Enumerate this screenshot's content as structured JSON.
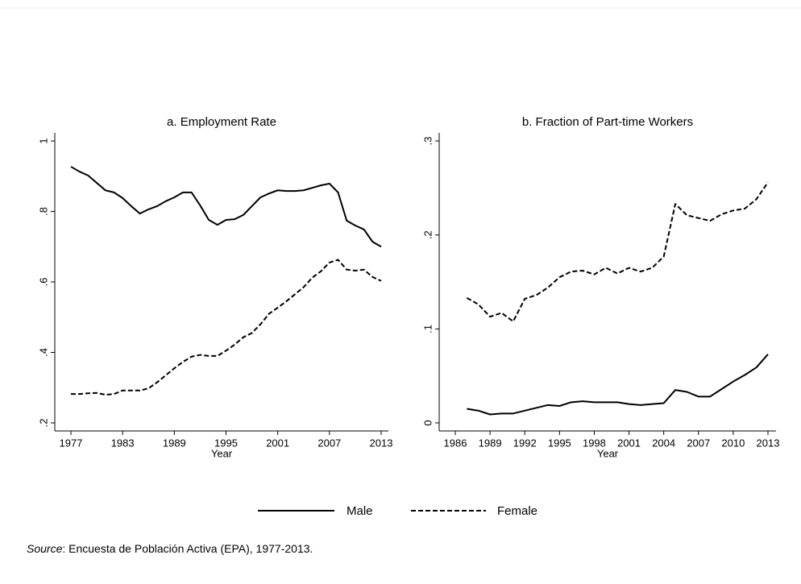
{
  "chart_data": [
    {
      "type": "line",
      "title": "a. Employment Rate",
      "xlabel": "Year",
      "x": [
        1977,
        1978,
        1979,
        1980,
        1981,
        1982,
        1983,
        1984,
        1985,
        1986,
        1987,
        1988,
        1989,
        1990,
        1991,
        1992,
        1993,
        1994,
        1995,
        1996,
        1997,
        1998,
        1999,
        2000,
        2001,
        2002,
        2003,
        2004,
        2005,
        2006,
        2007,
        2008,
        2009,
        2010,
        2011,
        2012,
        2013
      ],
      "series": [
        {
          "name": "Male",
          "color": "#000000",
          "dash": "solid",
          "values": [
            0.927,
            0.913,
            0.902,
            0.881,
            0.86,
            0.854,
            0.838,
            0.815,
            0.794,
            0.806,
            0.815,
            0.829,
            0.84,
            0.854,
            0.854,
            0.817,
            0.776,
            0.762,
            0.776,
            0.778,
            0.79,
            0.815,
            0.84,
            0.851,
            0.86,
            0.858,
            0.858,
            0.86,
            0.867,
            0.874,
            0.879,
            0.854,
            0.774,
            0.76,
            0.749,
            0.714,
            0.7
          ]
        },
        {
          "name": "Female",
          "color": "#000000",
          "dash": "dashed",
          "values": [
            0.282,
            0.282,
            0.284,
            0.285,
            0.28,
            0.282,
            0.292,
            0.292,
            0.292,
            0.298,
            0.315,
            0.335,
            0.355,
            0.373,
            0.388,
            0.393,
            0.39,
            0.39,
            0.405,
            0.422,
            0.443,
            0.455,
            0.48,
            0.51,
            0.527,
            0.545,
            0.565,
            0.585,
            0.612,
            0.63,
            0.655,
            0.663,
            0.635,
            0.632,
            0.635,
            0.614,
            0.603
          ]
        }
      ],
      "xlim": [
        1977,
        2013
      ],
      "xticks": [
        1977,
        1983,
        1989,
        1995,
        2001,
        2007,
        2013
      ],
      "ylim": [
        0.2,
        1
      ],
      "yticks": [
        {
          "value": 0.2,
          "label": ".2"
        },
        {
          "value": 0.4,
          "label": ".4"
        },
        {
          "value": 0.6,
          "label": ".6"
        },
        {
          "value": 0.8,
          "label": ".8"
        },
        1
      ]
    },
    {
      "type": "line",
      "title": "b. Fraction of Part-time Workers",
      "xlabel": "Year",
      "x": [
        1987,
        1988,
        1989,
        1990,
        1991,
        1992,
        1993,
        1994,
        1995,
        1996,
        1997,
        1998,
        1999,
        2000,
        2001,
        2002,
        2003,
        2004,
        2005,
        2006,
        2007,
        2008,
        2009,
        2010,
        2011,
        2012,
        2013
      ],
      "series": [
        {
          "color": "#000000",
          "dash": "solid",
          "values": [
            0.015,
            0.013,
            0.009,
            0.01,
            0.01,
            0.013,
            0.016,
            0.019,
            0.018,
            0.022,
            0.023,
            0.022,
            0.022,
            0.022,
            0.02,
            0.019,
            0.02,
            0.021,
            0.035,
            0.033,
            0.028,
            0.028,
            0.036,
            0.044,
            0.051,
            0.059,
            0.073
          ]
        },
        {
          "color": "#000000",
          "dash": "dashed",
          "values": [
            0.133,
            0.126,
            0.113,
            0.117,
            0.108,
            0.132,
            0.136,
            0.144,
            0.155,
            0.161,
            0.162,
            0.158,
            0.165,
            0.159,
            0.165,
            0.161,
            0.165,
            0.177,
            0.233,
            0.221,
            0.218,
            0.215,
            0.222,
            0.226,
            0.228,
            0.238,
            0.256
          ]
        }
      ],
      "xlim": [
        1986,
        2013
      ],
      "xticks": [
        1986,
        1989,
        1992,
        1995,
        1998,
        2001,
        2004,
        2007,
        2010,
        2013
      ],
      "ylim": [
        0,
        0.3
      ],
      "yticks": [
        0,
        {
          "value": 0.1,
          "label": ".1"
        },
        {
          "value": 0.2,
          "label": ".2"
        },
        {
          "value": 0.3,
          "label": ".3"
        }
      ]
    }
  ],
  "note": {
    "label": "Source",
    "text": ": Encuesta de Población Activa (EPA), 1977-2013."
  }
}
